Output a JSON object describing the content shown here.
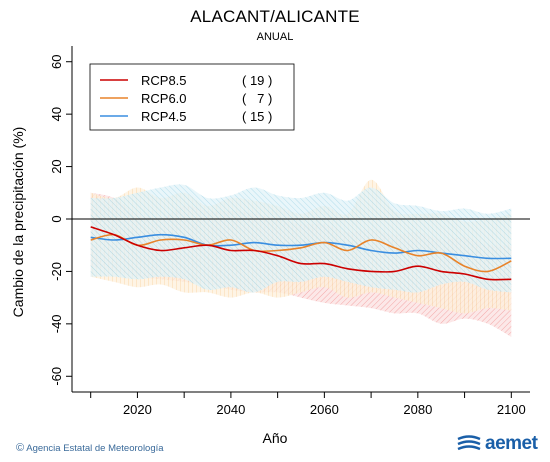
{
  "header": {
    "title": "ALACANT/ALICANTE",
    "subtitle": "ANUAL"
  },
  "footer": {
    "agency": "Agencia Estatal de Meteorología",
    "copyright_symbol": "©",
    "logo_text": "aemet"
  },
  "chart_data": {
    "type": "line",
    "xlabel": "Año",
    "ylabel": "Cambio de la precipitación (%)",
    "xlim": [
      2006,
      2104
    ],
    "ylim": [
      -66,
      66
    ],
    "x_ticks": [
      2020,
      2040,
      2060,
      2080,
      2100
    ],
    "y_ticks": [
      -60,
      -40,
      -20,
      0,
      20,
      40,
      60
    ],
    "zero_line": true,
    "grid": false,
    "legend_position": "top-left",
    "x": [
      2010,
      2015,
      2020,
      2025,
      2030,
      2035,
      2040,
      2045,
      2050,
      2055,
      2060,
      2065,
      2070,
      2075,
      2080,
      2085,
      2090,
      2095,
      2100
    ],
    "series": [
      {
        "name": "RCP8.5",
        "count": "( 19 )",
        "color": "#cc0000",
        "band_color": "#f08a8a",
        "values": [
          -3,
          -6,
          -10,
          -12,
          -11,
          -10,
          -12,
          -12,
          -14,
          -17,
          -17,
          -19,
          -20,
          -20,
          -18,
          -20,
          -21,
          -23,
          -23
        ],
        "upper": [
          10,
          8,
          2,
          0,
          5,
          3,
          3,
          2,
          0,
          -2,
          -2,
          -5,
          -4,
          -6,
          -5,
          -8,
          -7,
          -10,
          -10
        ],
        "lower": [
          -18,
          -20,
          -22,
          -23,
          -24,
          -25,
          -27,
          -28,
          -28,
          -30,
          -32,
          -33,
          -34,
          -36,
          -36,
          -40,
          -38,
          -40,
          -45
        ]
      },
      {
        "name": "RCP6.0",
        "count": "(   7 )",
        "color": "#e8832a",
        "band_color": "#f7c98f",
        "values": [
          -8,
          -6,
          -10,
          -8,
          -8,
          -10,
          -8,
          -12,
          -12,
          -11,
          -9,
          -12,
          -8,
          -11,
          -14,
          -13,
          -18,
          -20,
          -16
        ],
        "upper": [
          10,
          8,
          12,
          8,
          10,
          5,
          8,
          7,
          5,
          2,
          5,
          2,
          15,
          3,
          2,
          2,
          -1,
          0,
          2
        ],
        "lower": [
          -22,
          -24,
          -26,
          -25,
          -28,
          -28,
          -30,
          -28,
          -30,
          -28,
          -26,
          -30,
          -28,
          -30,
          -32,
          -34,
          -36,
          -34,
          -35
        ]
      },
      {
        "name": "RCP4.5",
        "count": "( 15 )",
        "color": "#3a8ee0",
        "band_color": "#9ad2e6",
        "values": [
          -7,
          -8,
          -7,
          -6,
          -7,
          -10,
          -10,
          -9,
          -10,
          -10,
          -9,
          -10,
          -12,
          -13,
          -12,
          -13,
          -14,
          -15,
          -15
        ],
        "upper": [
          8,
          8,
          10,
          12,
          13,
          8,
          9,
          12,
          9,
          8,
          10,
          7,
          12,
          6,
          5,
          3,
          4,
          2,
          4
        ],
        "lower": [
          -22,
          -22,
          -23,
          -22,
          -23,
          -27,
          -26,
          -28,
          -24,
          -24,
          -22,
          -24,
          -26,
          -27,
          -28,
          -25,
          -24,
          -27,
          -28
        ]
      }
    ]
  }
}
